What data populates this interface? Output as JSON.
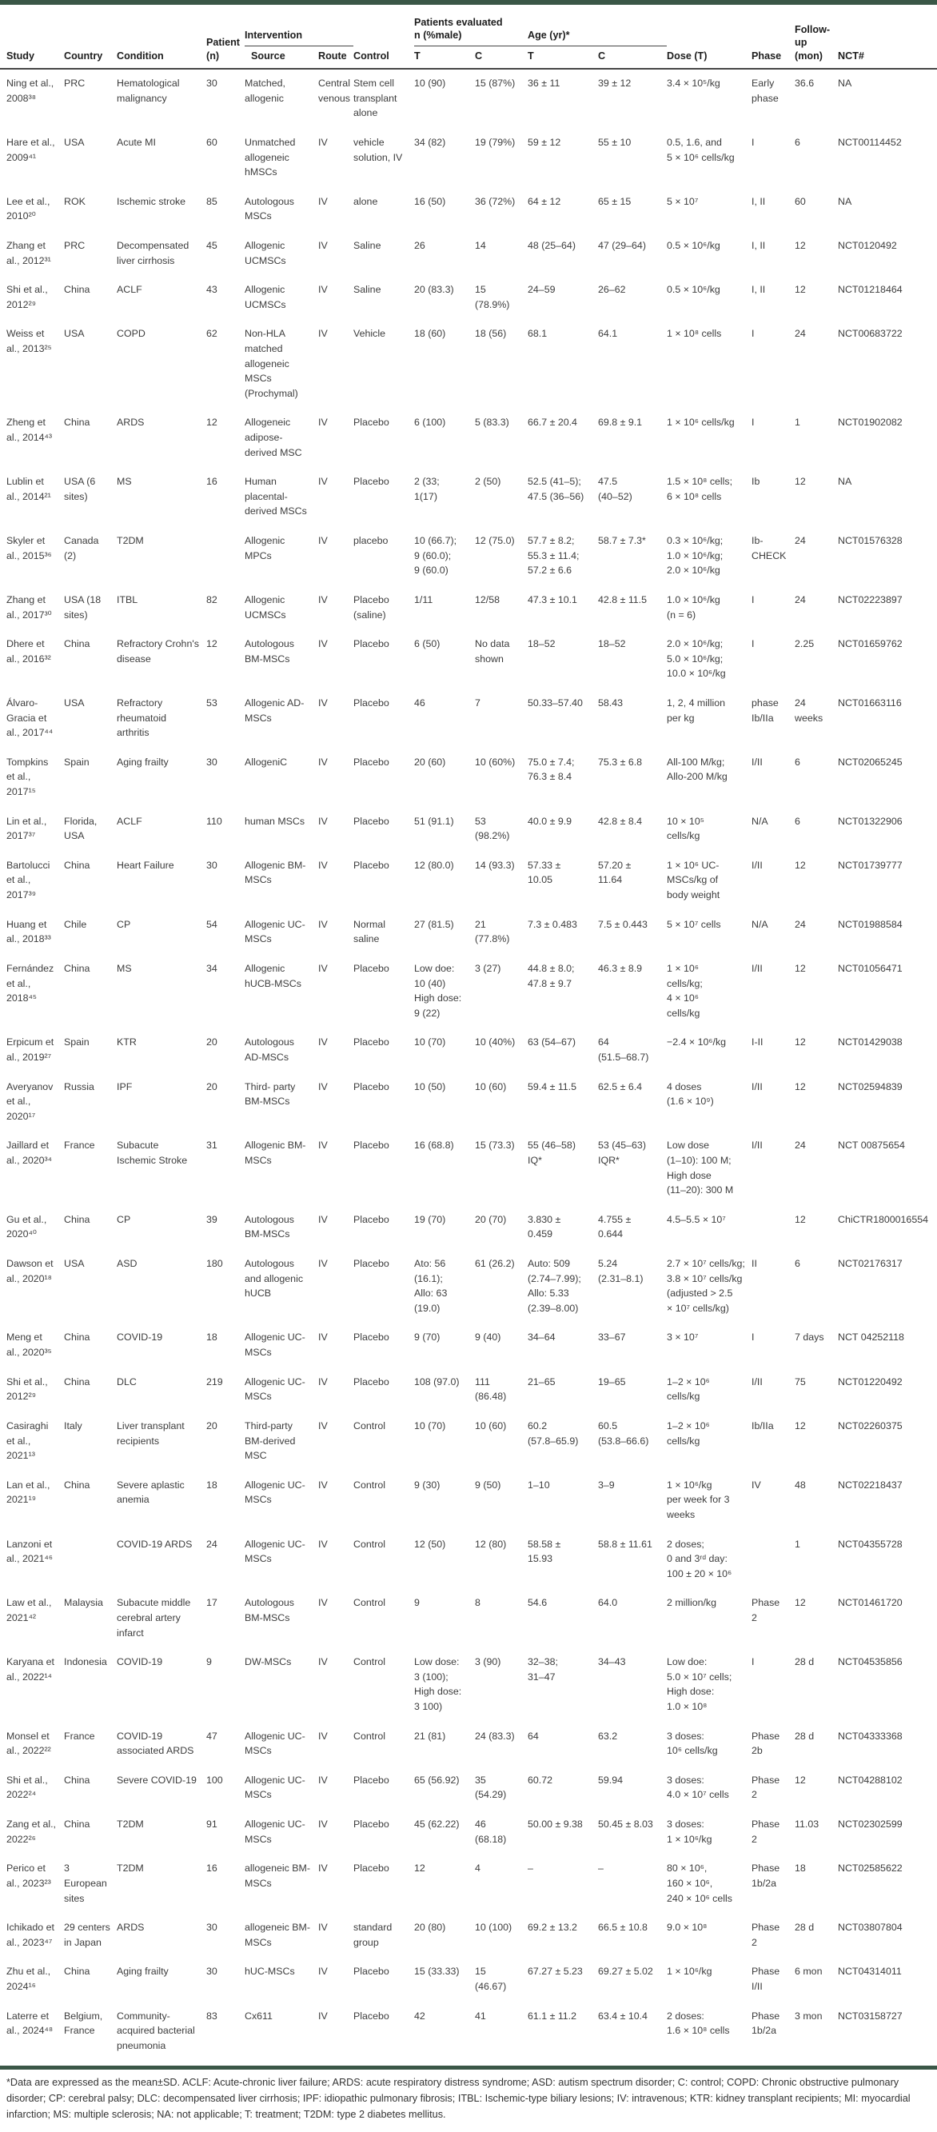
{
  "table": {
    "header": {
      "study": "Study",
      "country": "Country",
      "condition": "Condition",
      "patient": "Patient\n(n)",
      "intervention": "Intervention",
      "source": "Source",
      "route": "Route",
      "control": "Control",
      "patients_evaluated": "Patients evaluated\nn (%male)",
      "age": "Age (yr)*",
      "t1": "T",
      "c1": "C",
      "t2": "T",
      "c2": "C",
      "dose": "Dose (T)",
      "phase": "Phase",
      "followup": "Follow-\nup\n(mon)",
      "nct": "NCT#"
    },
    "rows": [
      [
        "Ning et al., 2008³⁸",
        "PRC",
        "Hematological malignancy",
        "30",
        "Matched, allogenic",
        "Central venous",
        "Stem cell transplant alone",
        "10 (90)",
        "15 (87%)",
        "36 ± 11",
        "39 ± 12",
        "3.4 × 10⁵/kg",
        "Early phase",
        "36.6",
        "NA"
      ],
      [
        "Hare et al., 2009⁴¹",
        "USA",
        "Acute MI",
        "60",
        "Unmatched allogeneic hMSCs",
        "IV",
        "vehicle solution, IV",
        "34 (82)",
        "19 (79%)",
        "59 ± 12",
        "55 ± 10",
        "0.5, 1.6, and\n5 × 10⁶ cells/kg",
        "I",
        "6",
        "NCT00114452"
      ],
      [
        "Lee et al., 2010²⁰",
        "ROK",
        "Ischemic stroke",
        "85",
        "Autologous MSCs",
        "IV",
        "alone",
        "16 (50)",
        "36 (72%)",
        "64 ± 12",
        "65 ± 15",
        "5 × 10⁷",
        "I, II",
        "60",
        "NA"
      ],
      [
        "Zhang et al., 2012³¹",
        "PRC",
        "Decompensated liver cirrhosis",
        "45",
        "Allogenic UCMSCs",
        "IV",
        "Saline",
        "26",
        "14",
        "48 (25–64)",
        "47 (29–64)",
        "0.5 × 10⁶/kg",
        "I, II",
        "12",
        "NCT0120492"
      ],
      [
        "Shi et al., 2012²⁹",
        "China",
        "ACLF",
        "43",
        "Allogenic UCMSCs",
        "IV",
        "Saline",
        "20 (83.3)",
        "15\n(78.9%)",
        "24–59",
        "26–62",
        "0.5 × 10⁶/kg",
        "I, II",
        "12",
        "NCT01218464"
      ],
      [
        "Weiss et al., 2013²⁵",
        "USA",
        "COPD",
        "62",
        "Non-HLA matched allogeneic MSCs (Prochymal)",
        "IV",
        "Vehicle",
        "18 (60)",
        "18 (56)",
        "68.1",
        "64.1",
        "1 × 10⁸ cells",
        "I",
        "24",
        "NCT00683722"
      ],
      [
        "Zheng et al., 2014⁴³",
        "China",
        "ARDS",
        "12",
        "Allogeneic adipose-derived MSC",
        "IV",
        "Placebo",
        "6 (100)",
        "5 (83.3)",
        "66.7 ± 20.4",
        "69.8 ± 9.1",
        "1 × 10⁶ cells/kg",
        "I",
        "1",
        "NCT01902082"
      ],
      [
        "Lublin et al., 2014²¹",
        "USA (6 sites)",
        "MS",
        "16",
        "Human placental-derived MSCs",
        "IV",
        "Placebo",
        "2 (33;\n1(17)",
        "2 (50)",
        "52.5 (41–5);\n47.5 (36–56)",
        "47.5\n(40–52)",
        "1.5 × 10⁸ cells;\n6 × 10⁸ cells",
        "Ib",
        "12",
        "NA"
      ],
      [
        "Skyler et al., 2015³⁶",
        "Canada (2)",
        "T2DM",
        "",
        "Allogenic MPCs",
        "IV",
        "placebo",
        "10 (66.7);\n9 (60.0);\n9 (60.0)",
        "12 (75.0)",
        "57.7 ± 8.2;\n55.3 ± 11.4;\n57.2 ± 6.6",
        "58.7 ± 7.3*",
        "0.3 × 10⁶/kg;\n1.0 × 10⁶/kg;\n2.0 × 10⁶/kg",
        "Ib-\nCHECK",
        "24",
        "NCT01576328"
      ],
      [
        "Zhang et al., 2017³⁰",
        "USA (18 sites)",
        "ITBL",
        "82",
        "Allogenic UCMSCs",
        "IV",
        "Placebo (saline)",
        "1/11",
        "12/58",
        "47.3 ± 10.1",
        "42.8 ± 11.5",
        "1.0 × 10⁶/kg\n(n = 6)",
        "I",
        "24",
        "NCT02223897"
      ],
      [
        "Dhere et al., 2016³²",
        "China",
        "Refractory Crohn's disease",
        "12",
        "Autologous BM-MSCs",
        "IV",
        "Placebo",
        "6 (50)",
        "No data\nshown",
        "18–52",
        "18–52",
        "2.0 × 10⁶/kg;\n5.0 × 10⁶/kg;\n10.0 × 10⁶/kg",
        "I",
        "2.25",
        "NCT01659762"
      ],
      [
        "Álvaro-Gracia et al., 2017⁴⁴",
        "USA",
        "Refractory rheumatoid arthritis",
        "53",
        "Allogenic AD-MSCs",
        "IV",
        "Placebo",
        "46",
        "7",
        "50.33–57.40",
        "58.43",
        "1, 2, 4 million\nper kg",
        "phase\nIb/IIa",
        "24\nweeks",
        "NCT01663116"
      ],
      [
        "Tompkins et al., 2017¹⁵",
        "Spain",
        "Aging frailty",
        "30",
        "AllogeniC",
        "IV",
        "Placebo",
        "20 (60)",
        "10 (60%)",
        "75.0 ± 7.4;\n76.3 ± 8.4",
        "75.3 ± 6.8",
        "All-100 M/kg;\nAllo-200 M/kg",
        "I/II",
        "6",
        "NCT02065245"
      ],
      [
        "Lin et al., 2017³⁷",
        "Florida, USA",
        "ACLF",
        "110",
        "human MSCs",
        "IV",
        "Placebo",
        "51 (91.1)",
        "53\n(98.2%)",
        "40.0 ± 9.9",
        "42.8 ± 8.4",
        "10 × 10⁵\ncells/kg",
        "N/A",
        "6",
        "NCT01322906"
      ],
      [
        "Bartolucci et al., 2017³⁹",
        "China",
        "Heart Failure",
        "30",
        "Allogenic BM-MSCs",
        "IV",
        "Placebo",
        "12 (80.0)",
        "14 (93.3)",
        "57.33 ±\n10.05",
        "57.20 ±\n11.64",
        "1 × 10⁶ UC-\nMSCs/kg of\nbody weight",
        "I/II",
        "12",
        "NCT01739777"
      ],
      [
        "Huang et al., 2018³³",
        "Chile",
        "CP",
        "54",
        "Allogenic UC-MSCs",
        "IV",
        "Normal saline",
        "27 (81.5)",
        "21\n(77.8%)",
        "7.3 ± 0.483",
        "7.5 ± 0.443",
        "5 × 10⁷ cells",
        "N/A",
        "24",
        "NCT01988584"
      ],
      [
        "Fernández et al., 2018⁴⁵",
        "China",
        "MS",
        "34",
        "Allogenic hUCB-MSCs",
        "IV",
        "Placebo",
        "Low doe:\n10 (40)\nHigh dose:\n9 (22)",
        "3 (27)",
        "44.8 ± 8.0;\n47.8 ± 9.7",
        "46.3 ± 8.9",
        "1 × 10⁶\ncells/kg;\n4 × 10⁶\ncells/kg",
        "I/II",
        "12",
        "NCT01056471"
      ],
      [
        "Erpicum et al., 2019²⁷",
        "Spain",
        "KTR",
        "20",
        "Autologous AD-MSCs",
        "IV",
        "Placebo",
        "10 (70)",
        "10 (40%)",
        "63 (54–67)",
        "64\n(51.5–68.7)",
        "−2.4 × 10⁶/kg",
        "I-II",
        "12",
        "NCT01429038"
      ],
      [
        "Averyanov et al., 2020¹⁷",
        "Russia",
        "IPF",
        "20",
        "Third- party BM-MSCs",
        "IV",
        "Placebo",
        "10 (50)",
        "10 (60)",
        "59.4 ± 11.5",
        "62.5 ± 6.4",
        "4 doses\n(1.6 × 10⁹)",
        "I/II",
        "12",
        "NCT02594839"
      ],
      [
        "Jaillard et al., 2020³⁴",
        "France",
        "Subacute Ischemic Stroke",
        "31",
        "Allogenic BM-MSCs",
        "IV",
        "Placebo",
        "16 (68.8)",
        "15 (73.3)",
        "55 (46–58)\nIQ*",
        "53 (45–63)\nIQR*",
        "Low dose\n(1–10): 100 M;\nHigh dose\n(11–20): 300 M",
        "I/II",
        "24",
        "NCT 00875654"
      ],
      [
        "Gu et al., 2020⁴⁰",
        "China",
        "CP",
        "39",
        "Autologous BM-MSCs",
        "IV",
        "Placebo",
        "19 (70)",
        "20 (70)",
        "3.830 ±\n0.459",
        "4.755 ±\n0.644",
        "4.5–5.5 × 10⁷",
        "",
        "12",
        "ChiCTR1800016554"
      ],
      [
        "Dawson et al., 2020¹⁸",
        "USA",
        "ASD",
        "180",
        "Autologous and allogenic hUCB",
        "IV",
        "Placebo",
        "Ato: 56\n(16.1);\nAllo: 63\n(19.0)",
        "61 (26.2)",
        "Auto: 509\n(2.74–7.99);\nAllo: 5.33\n(2.39–8.00)",
        "5.24\n(2.31–8.1)",
        "2.7 × 10⁷ cells/kg;\n3.8 × 10⁷ cells/kg\n(adjusted > 2.5\n× 10⁷ cells/kg)",
        "II",
        "6",
        "NCT02176317"
      ],
      [
        "Meng et al., 2020³⁵",
        "China",
        "COVID-19",
        "18",
        "Allogenic UC-MSCs",
        "IV",
        "Placebo",
        "9 (70)",
        "9 (40)",
        "34–64",
        "33–67",
        "3 × 10⁷",
        "I",
        "7 days",
        "NCT 04252118"
      ],
      [
        "Shi et al., 2012²⁹",
        "China",
        "DLC",
        "219",
        "Allogenic UC-MSCs",
        "IV",
        "Placebo",
        "108 (97.0)",
        "111\n(86.48)",
        "21–65",
        "19–65",
        "1–2 × 10⁶\ncells/kg",
        "I/II",
        "75",
        "NCT01220492"
      ],
      [
        "Casiraghi et al., 2021¹³",
        "Italy",
        "Liver transplant recipients",
        "20",
        "Third-party BM-derived MSC",
        "IV",
        "Control",
        "10 (70)",
        "10 (60)",
        "60.2\n(57.8–65.9)",
        "60.5\n(53.8–66.6)",
        "1–2 × 10⁶\ncells/kg",
        "Ib/IIa",
        "12",
        "NCT02260375"
      ],
      [
        "Lan et al., 2021¹⁹",
        "China",
        "Severe aplastic anemia",
        "18",
        "Allogenic UC-MSCs",
        "IV",
        "Control",
        "9 (30)",
        "9 (50)",
        "1–10",
        "3–9",
        "1 × 10⁶/kg\nper week for 3\nweeks",
        "IV",
        "48",
        "NCT02218437"
      ],
      [
        "Lanzoni et al., 2021⁴⁶",
        "",
        "COVID-19 ARDS",
        "24",
        "Allogenic UC-MSCs",
        "IV",
        "Control",
        "12 (50)",
        "12 (80)",
        "58.58 ±\n15.93",
        "58.8 ± 11.61",
        "2 doses;\n0 and 3ʳᵈ day:\n100 ± 20 × 10⁶",
        "",
        "1",
        "NCT04355728"
      ],
      [
        "Law et al., 2021⁴²",
        "Malaysia",
        "Subacute middle cerebral artery infarct",
        "17",
        "Autologous BM-MSCs",
        "IV",
        "Control",
        "9",
        "8",
        "54.6",
        "64.0",
        "2 million/kg",
        "Phase\n2",
        "12",
        "NCT01461720"
      ],
      [
        "Karyana et al., 2022¹⁴",
        "Indonesia",
        "COVID-19",
        "9",
        "DW-MSCs",
        "IV",
        "Control",
        "Low dose:\n3 (100);\nHigh dose:\n3 100)",
        "3 (90)",
        "32–38;\n31–47",
        "34–43",
        "Low doe:\n5.0 × 10⁷ cells;\nHigh dose:\n1.0 × 10⁸",
        "I",
        "28 d",
        "NCT04535856"
      ],
      [
        "Monsel et al., 2022²²",
        "France",
        "COVID-19 associated ARDS",
        "47",
        "Allogenic UC-MSCs",
        "IV",
        "Control",
        "21 (81)",
        "24 (83.3)",
        "64",
        "63.2",
        "3 doses:\n10⁶ cells/kg",
        "Phase\n2b",
        "28 d",
        "NCT04333368"
      ],
      [
        "Shi et al., 2022²⁴",
        "China",
        "Severe COVID-19",
        "100",
        "Allogenic UC-MSCs",
        "IV",
        "Placebo",
        "65 (56.92)",
        "35\n(54.29)",
        "60.72",
        "59.94",
        "3 doses:\n4.0 × 10⁷ cells",
        "Phase\n2",
        "12",
        "NCT04288102"
      ],
      [
        "Zang et al., 2022²⁶",
        "China",
        "T2DM",
        "91",
        "Allogenic UC-MSCs",
        "IV",
        "Placebo",
        "45 (62.22)",
        "46\n(68.18)",
        "50.00 ± 9.38",
        "50.45 ± 8.03",
        "3 doses:\n1 × 10⁶/kg",
        "Phase\n2",
        "11.03",
        "NCT02302599"
      ],
      [
        "Perico et al., 2023²³",
        "3 European sites",
        "T2DM",
        "16",
        "allogeneic BM-MSCs",
        "IV",
        "Placebo",
        "12",
        "4",
        "–",
        "–",
        "80 × 10⁶,\n160 × 10⁶,\n240 × 10⁶ cells",
        "Phase\n1b/2a",
        "18",
        "NCT02585622"
      ],
      [
        "Ichikado et al., 2023⁴⁷",
        "29 centers in Japan",
        "ARDS",
        "30",
        "allogeneic BM-MSCs",
        "IV",
        "standard group",
        "20 (80)",
        "10 (100)",
        "69.2 ± 13.2",
        "66.5 ± 10.8",
        "9.0 × 10⁸",
        "Phase\n2",
        "28 d",
        "NCT03807804"
      ],
      [
        "Zhu et al., 2024¹⁶",
        "China",
        "Aging frailty",
        "30",
        "hUC-MSCs",
        "IV",
        "Placebo",
        "15 (33.33)",
        "15\n(46.67)",
        "67.27 ± 5.23",
        "69.27 ± 5.02",
        "1 × 10⁶/kg",
        "Phase\nI/II",
        "6 mon",
        "NCT04314011"
      ],
      [
        "Laterre et al., 2024⁴⁸",
        "Belgium, France",
        "Community-acquired bacterial pneumonia",
        "83",
        "Cx611",
        "IV",
        "Placebo",
        "42",
        "41",
        "61.1 ± 11.2",
        "63.4 ± 10.4",
        "2 doses:\n1.6 × 10⁸ cells",
        "Phase\n1b/2a",
        "3 mon",
        "NCT03158727"
      ]
    ]
  },
  "footnote": "*Data are expressed as the mean±SD. ACLF: Acute-chronic liver failure; ARDS: acute respiratory distress syndrome; ASD: autism spectrum disorder; C: control; COPD: Chronic obstructive pulmonary disorder; CP: cerebral palsy; DLC: decompensated liver cirrhosis; IPF: idiopathic pulmonary fibrosis; ITBL: Ischemic-type biliary lesions; IV: intravenous; KTR: kidney transplant recipients; MI: myocardial infarction; MS: multiple sclerosis; NA: not applicable; T: treatment; T2DM:  type 2 diabetes mellitus."
}
